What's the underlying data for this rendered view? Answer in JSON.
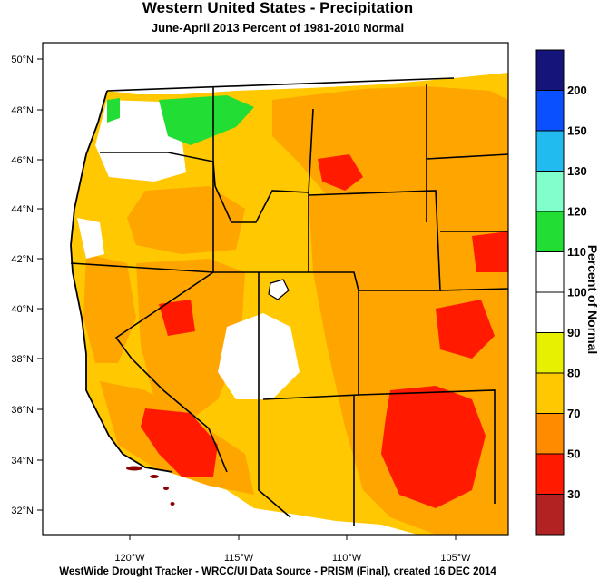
{
  "title": "Western United States - Precipitation",
  "subtitle": "June-April 2013  Percent of 1981-2010 Normal",
  "footer": "WestWide Drought Tracker - WRCC/UI  Data Source - PRISM (Final), created 16 DEC 2014",
  "legend": {
    "title": "Percent of Normal",
    "bins": [
      {
        "color": "#b22222"
      },
      {
        "color": "#ff1a00"
      },
      {
        "color": "#ff8c00"
      },
      {
        "color": "#ffc800"
      },
      {
        "color": "#e6f000"
      },
      {
        "color": "#ffffff"
      },
      {
        "color": "#ffffff"
      },
      {
        "color": "#22dd33"
      },
      {
        "color": "#80ffcc"
      },
      {
        "color": "#22bbf0"
      },
      {
        "color": "#0a50ff"
      },
      {
        "color": "#14147a"
      }
    ],
    "tick_labels": [
      "30",
      "50",
      "70",
      "80",
      "90",
      "100",
      "110",
      "120",
      "130",
      "150",
      "200"
    ]
  },
  "axes": {
    "lat_labels": [
      "50°N",
      "48°N",
      "46°N",
      "44°N",
      "42°N",
      "40°N",
      "38°N",
      "36°N",
      "34°N",
      "32°N"
    ],
    "lon_labels": [
      "120°W",
      "115°W",
      "110°W",
      "105°W"
    ]
  },
  "colors": {
    "ocean": "#ffffff",
    "dominant": "#ffa500",
    "dry": "#ff1a00",
    "wet": "#22dd33"
  }
}
